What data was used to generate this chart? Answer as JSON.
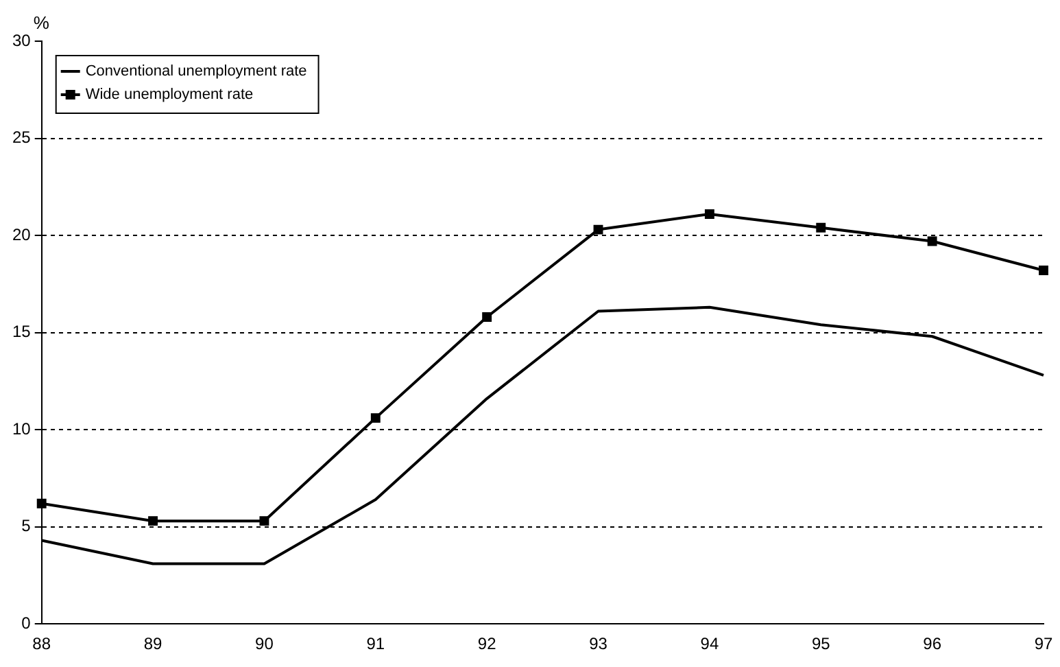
{
  "chart_data": {
    "type": "line",
    "ylabel": "%",
    "categories": [
      "88",
      "89",
      "90",
      "91",
      "92",
      "93",
      "94",
      "95",
      "96",
      "97"
    ],
    "series": [
      {
        "name": "Conventional unemployment rate",
        "color": "#000000",
        "marker": "none",
        "values": [
          4.3,
          3.1,
          3.1,
          6.4,
          11.6,
          16.1,
          16.3,
          15.4,
          14.8,
          12.8
        ]
      },
      {
        "name": "Wide unemployment rate",
        "color": "#000000",
        "marker": "square",
        "values": [
          6.2,
          5.3,
          5.3,
          10.6,
          15.8,
          20.3,
          21.1,
          20.4,
          19.7,
          18.2
        ]
      }
    ],
    "ylim": [
      0,
      30
    ],
    "yticks": [
      0,
      5,
      10,
      15,
      20,
      25,
      30
    ],
    "grid": "y",
    "line_style": "solid",
    "legend": "top left"
  }
}
